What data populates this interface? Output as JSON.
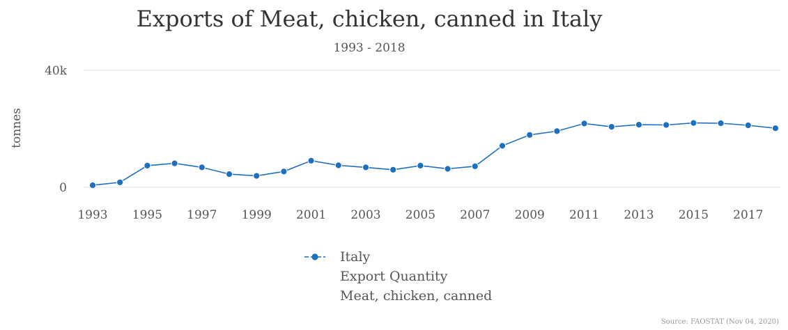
{
  "chart_data": {
    "type": "line",
    "title": "Exports of Meat, chicken, canned in Italy",
    "subtitle": "1993 - 2018",
    "ylabel": "tonnes",
    "xlabel": "",
    "ylim": [
      0,
      40000
    ],
    "y_ticks": [
      {
        "value": 0,
        "label": "0"
      },
      {
        "value": 40000,
        "label": "40k"
      }
    ],
    "x_ticks": [
      "1993",
      "1995",
      "1997",
      "1999",
      "2001",
      "2003",
      "2005",
      "2007",
      "2009",
      "2011",
      "2013",
      "2015",
      "2017"
    ],
    "grid": true,
    "legend_position": "bottom",
    "x": [
      1993,
      1994,
      1995,
      1996,
      1997,
      1998,
      1999,
      2000,
      2001,
      2002,
      2003,
      2004,
      2005,
      2006,
      2007,
      2008,
      2009,
      2010,
      2011,
      2012,
      2013,
      2014,
      2015,
      2016,
      2017,
      2018
    ],
    "series": [
      {
        "name": "Italy",
        "legend_lines": [
          "Italy",
          "Export Quantity",
          "Meat, chicken, canned"
        ],
        "color": "#1f6fbf",
        "values": [
          700,
          1700,
          7400,
          8200,
          6800,
          4500,
          3900,
          5400,
          9100,
          7500,
          6800,
          6000,
          7400,
          6300,
          7200,
          14200,
          17900,
          19200,
          21800,
          20700,
          21400,
          21300,
          22000,
          21900,
          21200,
          20200
        ]
      }
    ],
    "source": "Source: FAOSTAT (Nov 04, 2020)"
  }
}
